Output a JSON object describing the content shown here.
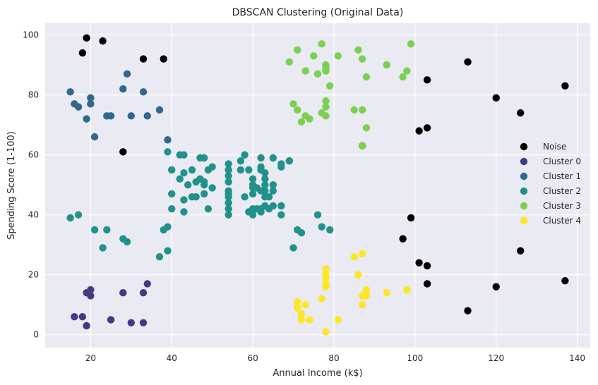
{
  "chart_data": {
    "type": "scatter",
    "title": "DBSCAN Clustering (Original Data)",
    "xlabel": "Annual Income (k$)",
    "ylabel": "Spending Score (1-100)",
    "xlim": [
      8.8,
      143.2
    ],
    "ylim": [
      -4.3,
      103.9
    ],
    "xticks": [
      20,
      40,
      60,
      80,
      100,
      120,
      140
    ],
    "yticks": [
      0,
      20,
      40,
      60,
      80,
      100
    ],
    "grid": true,
    "background": "#eaeaf2",
    "legend_position": "right",
    "series": [
      {
        "name": "Noise",
        "color": "#000000",
        "points": [
          [
            19,
            99
          ],
          [
            23,
            98
          ],
          [
            18,
            94
          ],
          [
            33,
            92
          ],
          [
            38,
            92
          ],
          [
            28,
            61
          ],
          [
            87,
            63
          ],
          [
            101,
            68
          ],
          [
            103,
            69
          ],
          [
            103,
            85
          ],
          [
            113,
            91
          ],
          [
            120,
            79
          ],
          [
            126,
            74
          ],
          [
            137,
            83
          ],
          [
            99,
            39
          ],
          [
            97,
            32
          ],
          [
            101,
            24
          ],
          [
            103,
            23
          ],
          [
            103,
            17
          ],
          [
            113,
            8
          ],
          [
            120,
            16
          ],
          [
            126,
            28
          ],
          [
            137,
            18
          ]
        ]
      },
      {
        "name": "Cluster 0",
        "color": "#443983",
        "points": [
          [
            16,
            6
          ],
          [
            18,
            6
          ],
          [
            19,
            3
          ],
          [
            19,
            14
          ],
          [
            20,
            13
          ],
          [
            20,
            15
          ],
          [
            25,
            5
          ],
          [
            28,
            14
          ],
          [
            30,
            4
          ],
          [
            33,
            4
          ],
          [
            33,
            14
          ],
          [
            34,
            17
          ]
        ]
      },
      {
        "name": "Cluster 1",
        "color": "#31688e",
        "points": [
          [
            15,
            81
          ],
          [
            16,
            77
          ],
          [
            17,
            76
          ],
          [
            19,
            72
          ],
          [
            20,
            77
          ],
          [
            20,
            79
          ],
          [
            21,
            66
          ],
          [
            24,
            73
          ],
          [
            25,
            73
          ],
          [
            28,
            82
          ],
          [
            29,
            87
          ],
          [
            30,
            73
          ],
          [
            33,
            81
          ],
          [
            34,
            73
          ],
          [
            37,
            75
          ],
          [
            39,
            65
          ]
        ]
      },
      {
        "name": "Cluster 2",
        "color": "#21918c",
        "points": [
          [
            15,
            39
          ],
          [
            17,
            40
          ],
          [
            21,
            35
          ],
          [
            23,
            29
          ],
          [
            24,
            35
          ],
          [
            28,
            32
          ],
          [
            29,
            31
          ],
          [
            37,
            26
          ],
          [
            38,
            35
          ],
          [
            39,
            36
          ],
          [
            39,
            28
          ],
          [
            39,
            61
          ],
          [
            40,
            55
          ],
          [
            40,
            42
          ],
          [
            40,
            47
          ],
          [
            42,
            60
          ],
          [
            42,
            52
          ],
          [
            43,
            54
          ],
          [
            43,
            60
          ],
          [
            43,
            41
          ],
          [
            43,
            45
          ],
          [
            44,
            50
          ],
          [
            45,
            46
          ],
          [
            45,
            55
          ],
          [
            46,
            51
          ],
          [
            46,
            46
          ],
          [
            47,
            52
          ],
          [
            47,
            59
          ],
          [
            48,
            50
          ],
          [
            48,
            47
          ],
          [
            48,
            51
          ],
          [
            48,
            59
          ],
          [
            49,
            55
          ],
          [
            49,
            42
          ],
          [
            50,
            49
          ],
          [
            50,
            56
          ],
          [
            54,
            57
          ],
          [
            54,
            55
          ],
          [
            54,
            53
          ],
          [
            54,
            51
          ],
          [
            54,
            48
          ],
          [
            54,
            46
          ],
          [
            54,
            44
          ],
          [
            54,
            42
          ],
          [
            54,
            40
          ],
          [
            54,
            47
          ],
          [
            57,
            58
          ],
          [
            57,
            55
          ],
          [
            58,
            60
          ],
          [
            58,
            46
          ],
          [
            59,
            55
          ],
          [
            59,
            41
          ],
          [
            60,
            49
          ],
          [
            60,
            40
          ],
          [
            60,
            42
          ],
          [
            60,
            52
          ],
          [
            60,
            47
          ],
          [
            60,
            50
          ],
          [
            61,
            42
          ],
          [
            61,
            49
          ],
          [
            62,
            41
          ],
          [
            62,
            48
          ],
          [
            62,
            59
          ],
          [
            62,
            55
          ],
          [
            62,
            56
          ],
          [
            62,
            42
          ],
          [
            63,
            50
          ],
          [
            63,
            46
          ],
          [
            63,
            43
          ],
          [
            63,
            48
          ],
          [
            63,
            52
          ],
          [
            63,
            54
          ],
          [
            64,
            42
          ],
          [
            64,
            46
          ],
          [
            65,
            48
          ],
          [
            65,
            50
          ],
          [
            65,
            43
          ],
          [
            65,
            59
          ],
          [
            67,
            43
          ],
          [
            67,
            57
          ],
          [
            67,
            56
          ],
          [
            67,
            40
          ],
          [
            69,
            58
          ],
          [
            69,
            58
          ],
          [
            70,
            29
          ],
          [
            71,
            35
          ],
          [
            72,
            34
          ],
          [
            76,
            40
          ],
          [
            77,
            36
          ],
          [
            79,
            35
          ]
        ]
      },
      {
        "name": "Cluster 3",
        "color": "#7ad151",
        "points": [
          [
            69,
            91
          ],
          [
            70,
            77
          ],
          [
            71,
            75
          ],
          [
            71,
            95
          ],
          [
            72,
            71
          ],
          [
            73,
            88
          ],
          [
            73,
            73
          ],
          [
            74,
            72
          ],
          [
            75,
            93
          ],
          [
            76,
            87
          ],
          [
            77,
            74
          ],
          [
            77,
            97
          ],
          [
            78,
            73
          ],
          [
            78,
            88
          ],
          [
            78,
            90
          ],
          [
            78,
            76
          ],
          [
            78,
            78
          ],
          [
            78,
            89
          ],
          [
            79,
            83
          ],
          [
            81,
            93
          ],
          [
            85,
            75
          ],
          [
            86,
            95
          ],
          [
            87,
            63
          ],
          [
            87,
            92
          ],
          [
            87,
            75
          ],
          [
            88,
            86
          ],
          [
            88,
            69
          ],
          [
            93,
            90
          ],
          [
            97,
            86
          ],
          [
            98,
            88
          ],
          [
            99,
            97
          ]
        ]
      },
      {
        "name": "Cluster 4",
        "color": "#fde725",
        "points": [
          [
            71,
            11
          ],
          [
            71,
            9
          ],
          [
            72,
            5
          ],
          [
            72,
            7
          ],
          [
            73,
            10
          ],
          [
            74,
            5
          ],
          [
            77,
            12
          ],
          [
            78,
            1
          ],
          [
            78,
            20
          ],
          [
            78,
            22
          ],
          [
            78,
            16
          ],
          [
            78,
            17
          ],
          [
            78,
            19
          ],
          [
            81,
            5
          ],
          [
            85,
            26
          ],
          [
            86,
            20
          ],
          [
            87,
            13
          ],
          [
            87,
            27
          ],
          [
            87,
            10
          ],
          [
            88,
            13
          ],
          [
            88,
            15
          ],
          [
            93,
            14
          ],
          [
            98,
            15
          ]
        ]
      }
    ]
  }
}
